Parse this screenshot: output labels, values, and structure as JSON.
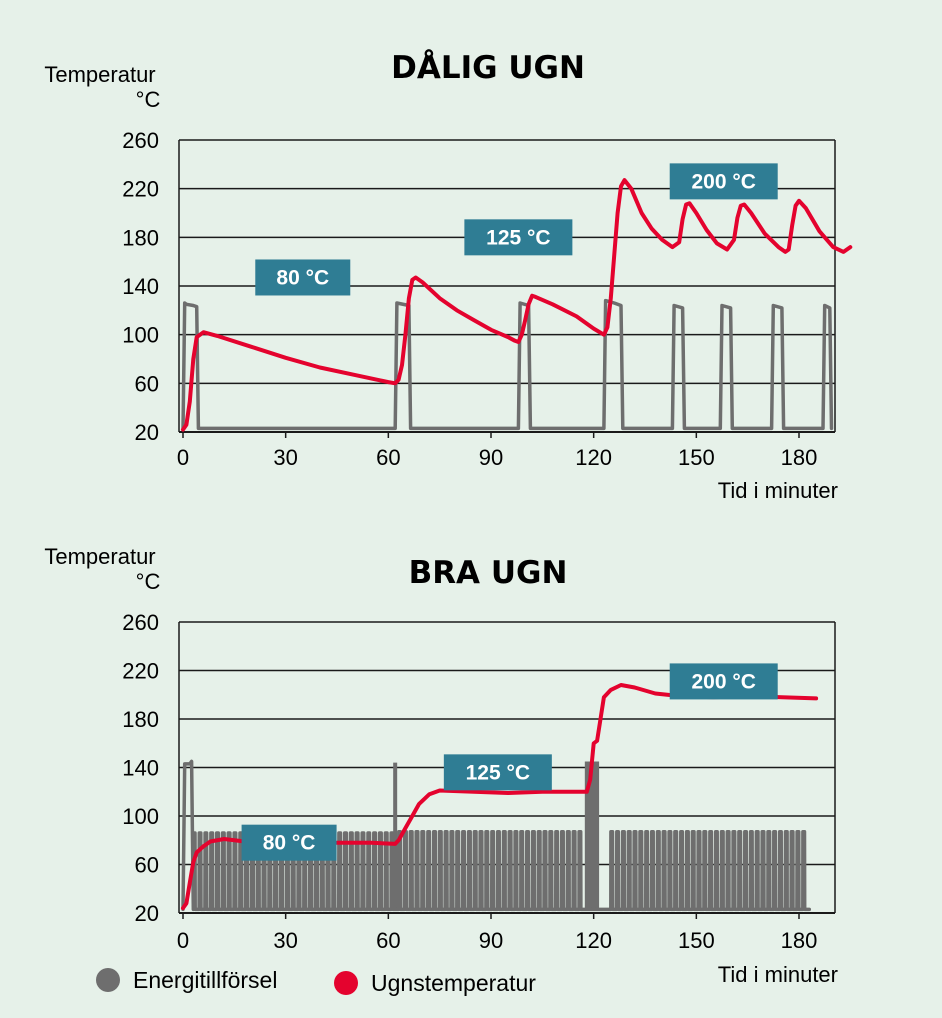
{
  "colors": {
    "background": "#e6f1e9",
    "temperature_line": "#e4032e",
    "energy_line": "#6e6e6e",
    "annotation_box": "#2f7d94",
    "annotation_text": "#ffffff",
    "gridline": "#1a1a1a"
  },
  "chart_data": [
    {
      "type": "line",
      "title": "DÅLIG UGN",
      "ylabel_line1": "Temperatur",
      "ylabel_line2": "°C",
      "xlabel": "Tid i minuter",
      "x_ticks": [
        "0",
        "30",
        "60",
        "90",
        "120",
        "150",
        "180"
      ],
      "y_ticks": [
        "260",
        "220",
        "180",
        "140",
        "100",
        "60",
        "20"
      ],
      "xlim": [
        0,
        190
      ],
      "ylim": [
        20,
        260
      ],
      "grid": true,
      "annotations": [
        {
          "text": "80 °C",
          "x": 35,
          "y": 147
        },
        {
          "text": "125 °C",
          "x": 98,
          "y": 180
        },
        {
          "text": "200 °C",
          "x": 158,
          "y": 226
        }
      ],
      "series": [
        {
          "name": "Ugnstemperatur",
          "color": "#e4032e",
          "points": [
            [
              0,
              22
            ],
            [
              1,
              26
            ],
            [
              2,
              45
            ],
            [
              3,
              80
            ],
            [
              4,
              98
            ],
            [
              6,
              102
            ],
            [
              10,
              99
            ],
            [
              20,
              90
            ],
            [
              30,
              81
            ],
            [
              40,
              73
            ],
            [
              50,
              67
            ],
            [
              60,
              61
            ],
            [
              62,
              60
            ],
            [
              63,
              63
            ],
            [
              64,
              75
            ],
            [
              65,
              100
            ],
            [
              66,
              130
            ],
            [
              67,
              145
            ],
            [
              68,
              147
            ],
            [
              70,
              143
            ],
            [
              75,
              130
            ],
            [
              80,
              120
            ],
            [
              85,
              112
            ],
            [
              90,
              104
            ],
            [
              95,
              98
            ],
            [
              97,
              95
            ],
            [
              98,
              94
            ],
            [
              99,
              100
            ],
            [
              100,
              112
            ],
            [
              101,
              125
            ],
            [
              102,
              132
            ],
            [
              103,
              131
            ],
            [
              108,
              125
            ],
            [
              115,
              115
            ],
            [
              120,
              105
            ],
            [
              123,
              100
            ],
            [
              124,
              106
            ],
            [
              125,
              130
            ],
            [
              126,
              165
            ],
            [
              127,
              200
            ],
            [
              128,
              222
            ],
            [
              129,
              227
            ],
            [
              131,
              220
            ],
            [
              134,
              200
            ],
            [
              137,
              187
            ],
            [
              140,
              178
            ],
            [
              143,
              172
            ],
            [
              145,
              176
            ],
            [
              146,
              195
            ],
            [
              147,
              207
            ],
            [
              148,
              208
            ],
            [
              150,
              200
            ],
            [
              153,
              186
            ],
            [
              156,
              175
            ],
            [
              159,
              170
            ],
            [
              161,
              178
            ],
            [
              162,
              196
            ],
            [
              163,
              206
            ],
            [
              164,
              207
            ],
            [
              166,
              200
            ],
            [
              170,
              183
            ],
            [
              174,
              172
            ],
            [
              176,
              168
            ],
            [
              177,
              170
            ],
            [
              178,
              190
            ],
            [
              179,
              206
            ],
            [
              180,
              210
            ],
            [
              182,
              204
            ],
            [
              186,
              185
            ],
            [
              190,
              172
            ],
            [
              193,
              168
            ],
            [
              195,
              172
            ]
          ]
        },
        {
          "name": "Energitillförsel",
          "color": "#6e6e6e",
          "points": [
            [
              0,
              22
            ],
            [
              0.5,
              126
            ],
            [
              1,
              125
            ],
            [
              3,
              124
            ],
            [
              4,
              123
            ],
            [
              4.5,
              23
            ],
            [
              62,
              23
            ],
            [
              62.5,
              126
            ],
            [
              66,
              124
            ],
            [
              66.5,
              23
            ],
            [
              98,
              23
            ],
            [
              98.5,
              126
            ],
            [
              101,
              124
            ],
            [
              101.5,
              23
            ],
            [
              123,
              23
            ],
            [
              123.5,
              128
            ],
            [
              126,
              126
            ],
            [
              128,
              124
            ],
            [
              128.5,
              23
            ],
            [
              143,
              23
            ],
            [
              143.5,
              124
            ],
            [
              146,
              122
            ],
            [
              146.5,
              23
            ],
            [
              157,
              23
            ],
            [
              157.5,
              124
            ],
            [
              160,
              122
            ],
            [
              160.5,
              23
            ],
            [
              172,
              23
            ],
            [
              172.5,
              124
            ],
            [
              175,
              122
            ],
            [
              175.5,
              23
            ],
            [
              187,
              23
            ],
            [
              187.5,
              124
            ],
            [
              189,
              122
            ],
            [
              189.5,
              23
            ]
          ]
        }
      ]
    },
    {
      "type": "line",
      "title": "BRA UGN",
      "ylabel_line1": "Temperatur",
      "ylabel_line2": "°C",
      "xlabel": "Tid i minuter",
      "x_ticks": [
        "0",
        "30",
        "60",
        "90",
        "120",
        "150",
        "180"
      ],
      "y_ticks": [
        "260",
        "220",
        "180",
        "140",
        "100",
        "60",
        "20"
      ],
      "xlim": [
        0,
        190
      ],
      "ylim": [
        20,
        260
      ],
      "grid": true,
      "annotations": [
        {
          "text": "80 °C",
          "x": 31,
          "y": 78
        },
        {
          "text": "125 °C",
          "x": 92,
          "y": 136
        },
        {
          "text": "200 °C",
          "x": 158,
          "y": 211
        }
      ],
      "series": [
        {
          "name": "Ugnstemperatur",
          "color": "#e4032e",
          "points": [
            [
              0,
              24
            ],
            [
              1,
              28
            ],
            [
              2,
              45
            ],
            [
              3,
              62
            ],
            [
              4,
              70
            ],
            [
              6,
              75
            ],
            [
              8,
              79
            ],
            [
              12,
              81
            ],
            [
              18,
              79
            ],
            [
              25,
              78
            ],
            [
              35,
              77
            ],
            [
              45,
              78
            ],
            [
              55,
              78
            ],
            [
              62,
              77
            ],
            [
              63,
              80
            ],
            [
              65,
              90
            ],
            [
              67,
              100
            ],
            [
              69,
              110
            ],
            [
              72,
              118
            ],
            [
              75,
              121
            ],
            [
              85,
              120
            ],
            [
              95,
              119
            ],
            [
              105,
              120
            ],
            [
              115,
              120
            ],
            [
              118,
              120
            ],
            [
              119,
              130
            ],
            [
              120,
              160
            ],
            [
              121,
              162
            ],
            [
              122,
              180
            ],
            [
              123,
              198
            ],
            [
              125,
              204
            ],
            [
              128,
              208
            ],
            [
              132,
              206
            ],
            [
              138,
              201
            ],
            [
              145,
              199
            ],
            [
              155,
              198
            ],
            [
              165,
              199
            ],
            [
              175,
              198
            ],
            [
              185,
              197
            ]
          ]
        },
        {
          "name": "Energitillförsel",
          "color": "#6e6e6e",
          "pattern": {
            "baseline": 23,
            "startup": [
              [
                0,
                23
              ],
              [
                0.5,
                143
              ],
              [
                2,
                143
              ],
              [
                2.5,
                145
              ],
              [
                3,
                23
              ]
            ],
            "pulse_levels": [
              {
                "from": 3,
                "to": 62,
                "level": 86
              },
              {
                "from": 63,
                "to": 118,
                "level": 87
              },
              {
                "from": 125,
                "to": 183,
                "level": 87
              }
            ],
            "pulse_period": 1.7,
            "spikes": [
              [
                62,
                144
              ],
              [
                118,
                145
              ],
              [
                119,
                145
              ],
              [
                120,
                145
              ],
              [
                121,
                145
              ]
            ]
          }
        }
      ]
    }
  ],
  "legend": {
    "items": [
      {
        "label": "Energitillförsel",
        "color": "#6e6e6e"
      },
      {
        "label": "Ugnstemperatur",
        "color": "#e4032e"
      }
    ]
  }
}
